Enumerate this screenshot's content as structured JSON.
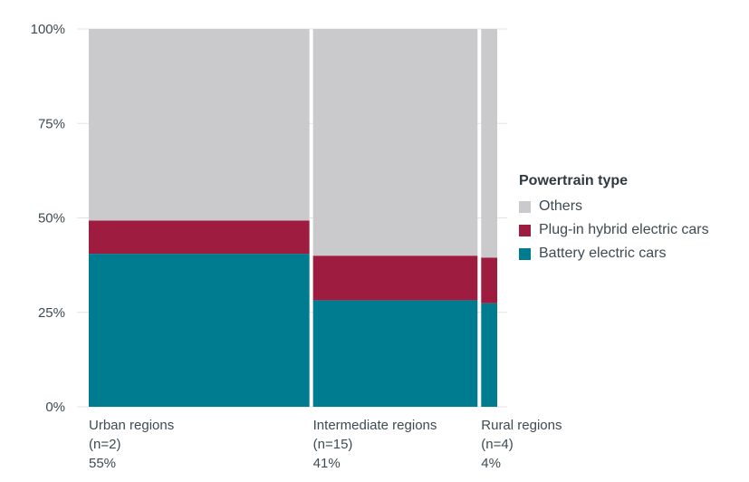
{
  "chart_data": {
    "type": "bar",
    "subtype": "marimekko",
    "yaxis": {
      "ticks": [
        "0%",
        "25%",
        "50%",
        "75%",
        "100%"
      ],
      "ylim": [
        0,
        100
      ]
    },
    "grid": true,
    "categories": [
      {
        "name": "Urban regions",
        "n_label": "(n=2)",
        "share_label": "55%",
        "width_share": 55
      },
      {
        "name": "Intermediate regions",
        "n_label": "(n=15)",
        "share_label": "41%",
        "width_share": 41
      },
      {
        "name": "Rural regions",
        "n_label": "(n=4)",
        "share_label": "4%",
        "width_share": 4
      }
    ],
    "series": [
      {
        "name": "Battery electric cars",
        "color": "#007c91",
        "values": [
          40.5,
          28.2,
          27.4
        ]
      },
      {
        "name": "Plug-in hybrid electric cars",
        "color": "#9e1c3f",
        "values": [
          8.8,
          11.8,
          12.1
        ]
      },
      {
        "name": "Others",
        "color": "#cacacc",
        "values": [
          50.7,
          60.0,
          60.5
        ]
      }
    ],
    "legend": {
      "title": "Powertrain type",
      "placement": "right",
      "items": [
        {
          "label": "Others",
          "color": "#cacacc"
        },
        {
          "label": "Plug-in hybrid electric cars",
          "color": "#9e1c3f"
        },
        {
          "label": "Battery electric cars",
          "color": "#007c91"
        }
      ]
    }
  }
}
